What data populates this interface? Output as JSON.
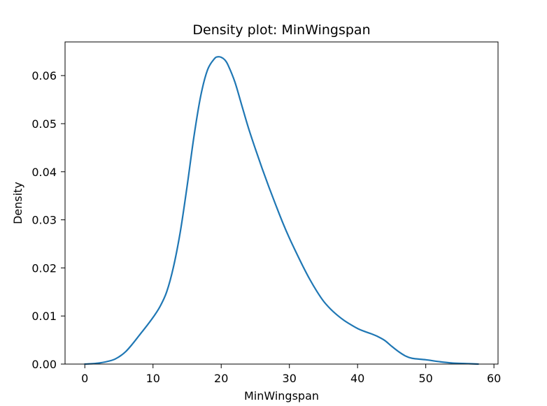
{
  "chart_data": {
    "type": "line",
    "title": "Density plot: MinWingspan",
    "xlabel": "MinWingspan",
    "ylabel": "Density",
    "xlim": [
      -2.9,
      60.6
    ],
    "ylim": [
      0,
      0.067
    ],
    "xticks": [
      0,
      10,
      20,
      30,
      40,
      50,
      60
    ],
    "xtick_labels": [
      "0",
      "10",
      "20",
      "30",
      "40",
      "50",
      "60"
    ],
    "yticks": [
      0.0,
      0.01,
      0.02,
      0.03,
      0.04,
      0.05,
      0.06
    ],
    "ytick_labels": [
      "0.00",
      "0.01",
      "0.02",
      "0.03",
      "0.04",
      "0.05",
      "0.06"
    ],
    "grid": false,
    "legend": "none",
    "series": [
      {
        "color": "#1f77b4",
        "x": [
          0,
          2,
          4,
          5,
          6,
          7,
          8,
          9,
          10,
          11,
          12,
          13,
          14,
          15,
          16,
          17,
          18,
          19,
          19.5,
          20,
          20.5,
          21,
          22,
          23,
          24,
          25,
          26,
          27,
          28,
          29,
          30,
          31,
          32,
          33,
          34,
          35,
          36,
          37,
          38,
          39,
          40,
          41,
          42,
          43,
          44,
          45,
          46,
          47,
          48,
          50,
          52,
          54,
          56,
          57.7
        ],
        "y": [
          0.0,
          0.0002,
          0.0008,
          0.0015,
          0.0026,
          0.0042,
          0.006,
          0.0078,
          0.0097,
          0.0119,
          0.015,
          0.0202,
          0.0275,
          0.037,
          0.0473,
          0.0558,
          0.0612,
          0.0635,
          0.0639,
          0.0638,
          0.0633,
          0.0622,
          0.0587,
          0.0539,
          0.0491,
          0.0448,
          0.0407,
          0.0368,
          0.0331,
          0.0295,
          0.0262,
          0.0232,
          0.0203,
          0.0176,
          0.0152,
          0.0131,
          0.0115,
          0.0102,
          0.0091,
          0.0082,
          0.0074,
          0.0068,
          0.0063,
          0.0057,
          0.0049,
          0.0037,
          0.0026,
          0.0017,
          0.0012,
          0.0009,
          0.0005,
          0.0002,
          0.0001,
          0.0
        ]
      }
    ],
    "colors": {
      "line": "#1f77b4",
      "axes": "#000000",
      "background": "#ffffff"
    }
  }
}
